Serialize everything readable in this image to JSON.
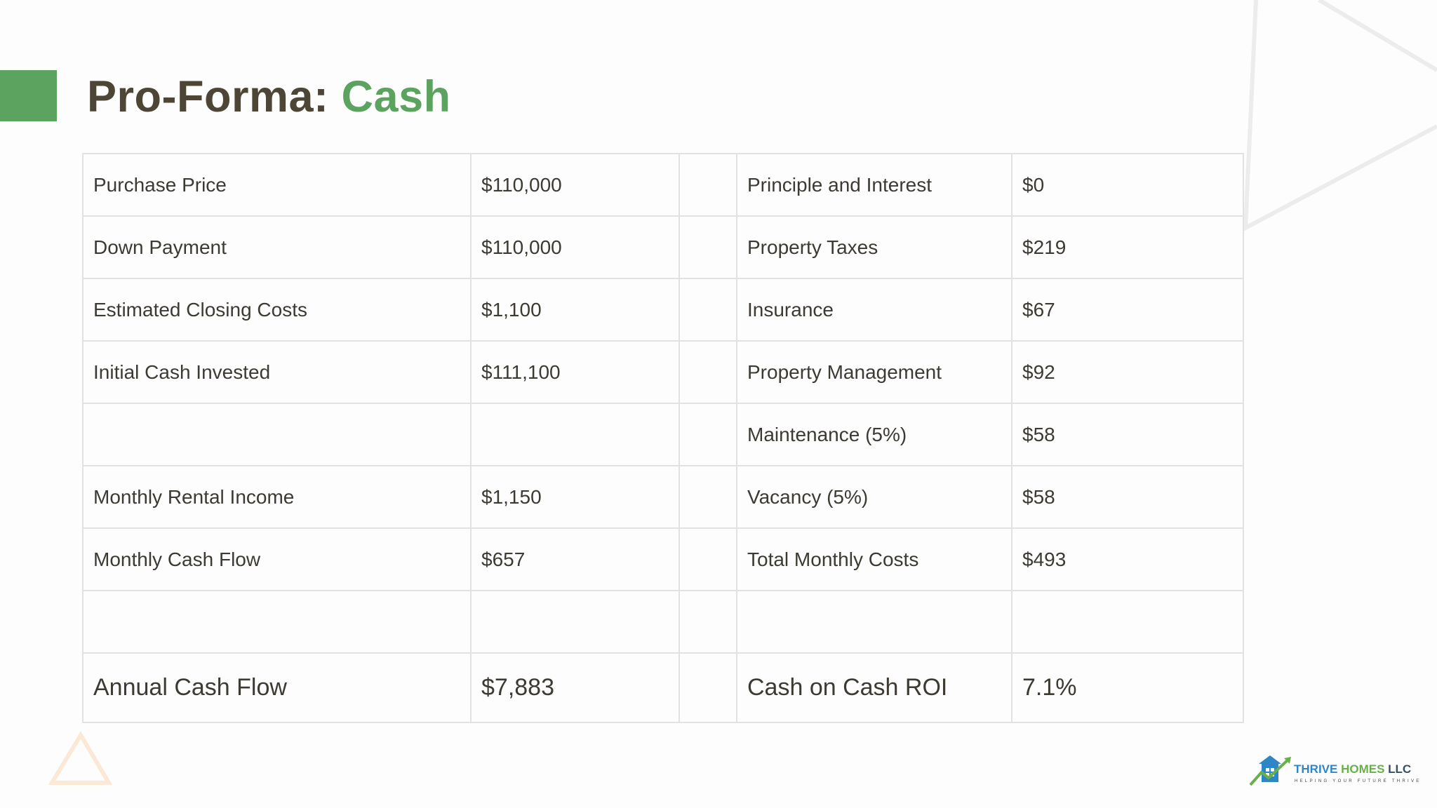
{
  "title": {
    "prefix": "Pro-Forma: ",
    "accent": "Cash"
  },
  "colors": {
    "accent_green": "#5ba35f",
    "title_dark": "#4d4535",
    "table_border": "#e2e2e2",
    "text": "#3d3a33"
  },
  "table": {
    "rows": [
      [
        "Purchase Price",
        "$110,000",
        "",
        "Principle and Interest",
        "$0"
      ],
      [
        "Down Payment",
        "$110,000",
        "",
        "Property Taxes",
        "$219"
      ],
      [
        "Estimated Closing Costs",
        "$1,100",
        "",
        "Insurance",
        "$67"
      ],
      [
        "Initial Cash Invested",
        "$111,100",
        "",
        "Property Management",
        "$92"
      ],
      [
        "",
        "",
        "",
        "Maintenance (5%)",
        "$58"
      ],
      [
        "Monthly Rental Income",
        "$1,150",
        "",
        "Vacancy (5%)",
        "$58"
      ],
      [
        "Monthly Cash Flow",
        "$657",
        "",
        "Total Monthly Costs",
        "$493"
      ],
      [
        "",
        "",
        "",
        "",
        ""
      ],
      [
        "Annual Cash Flow",
        "$7,883",
        "",
        "Cash on Cash ROI",
        "7.1%"
      ]
    ]
  },
  "logo": {
    "name_part1": "THRIVE ",
    "name_part2": "HOMES ",
    "name_part3": "LLC",
    "tagline": "HELPING YOUR FUTURE THRIVE",
    "icon": "house-arrow-icon"
  }
}
